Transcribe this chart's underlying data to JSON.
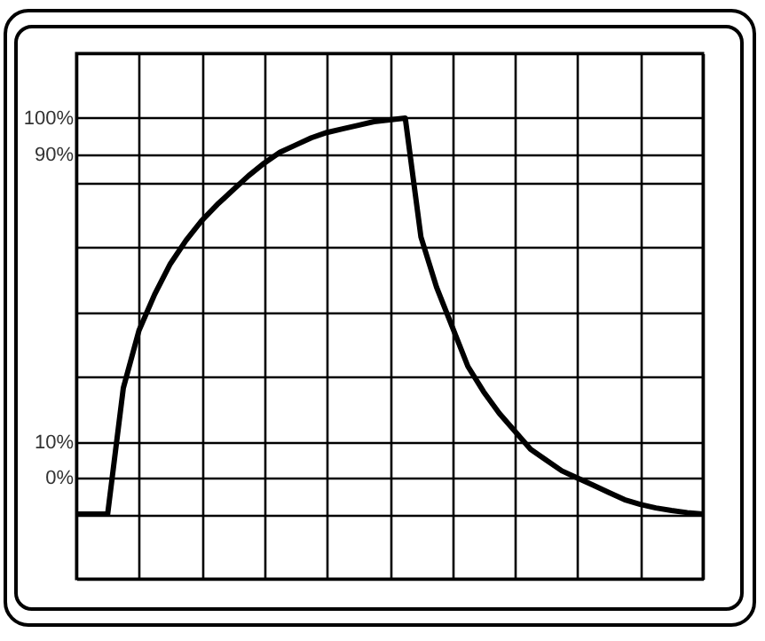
{
  "chart_data": {
    "type": "line",
    "categories": [
      null,
      null,
      null,
      null,
      null,
      null,
      null,
      null,
      null,
      null,
      null,
      null,
      null,
      null,
      null,
      null,
      null,
      null,
      null,
      null,
      null,
      null,
      null,
      null,
      null,
      null,
      null,
      null,
      null,
      null,
      null,
      null,
      null,
      null,
      null,
      null,
      null,
      null,
      null,
      null,
      null
    ],
    "series": [
      {
        "color": "#000000",
        "values": [
          -10,
          -10,
          -10,
          25,
          41,
          51,
          59.5,
          66,
          71.5,
          76,
          80,
          84,
          87.5,
          90.5,
          92.5,
          94.5,
          96,
          97,
          98,
          99,
          99.5,
          100,
          67,
          53,
          42,
          31,
          24,
          18,
          13,
          8,
          5,
          2,
          0,
          -2,
          -4,
          -6,
          -7.3,
          -8.3,
          -9,
          -9.6,
          -10
        ]
      }
    ],
    "ylim": [
      -28,
      118
    ],
    "yticks": [
      {
        "value": -28,
        "label": null
      },
      {
        "value": -10,
        "label": null
      },
      {
        "value": 0,
        "label": "0%"
      },
      {
        "value": 10,
        "label": "10%"
      },
      {
        "value": 28,
        "label": null
      },
      {
        "value": 46,
        "label": null
      },
      {
        "value": 64,
        "label": null
      },
      {
        "value": 82,
        "label": null
      },
      {
        "value": 90,
        "label": "90%"
      },
      {
        "value": 100,
        "label": "100%"
      },
      {
        "value": 118,
        "label": null
      }
    ],
    "grid": true,
    "marker": "none",
    "line_style": "solid"
  }
}
